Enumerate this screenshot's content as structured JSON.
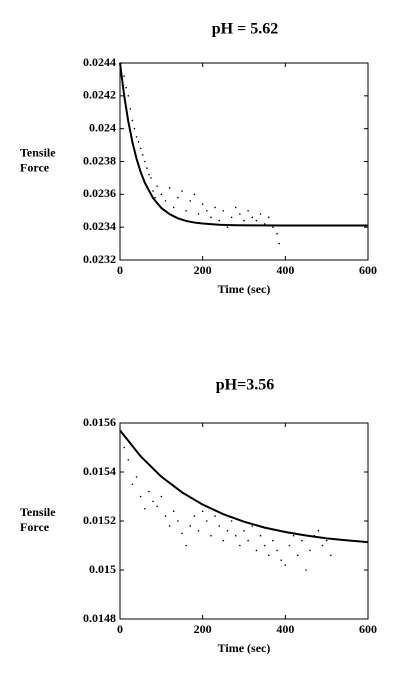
{
  "chart_data": [
    {
      "type": "scatter",
      "title": "pH = 5.62",
      "xlabel": "Time (sec)",
      "ylabel": [
        "Tensile",
        "Force"
      ],
      "xlim": [
        0,
        600
      ],
      "xticks": [
        0,
        200,
        400,
        600
      ],
      "ylim": [
        0.0232,
        0.0244
      ],
      "yticks": [
        0.0232,
        0.0234,
        0.0236,
        0.0238,
        0.024,
        0.0242,
        0.0244
      ],
      "series": [
        {
          "type": "scatter",
          "color": "#000000",
          "x": [
            5,
            10,
            15,
            20,
            25,
            30,
            35,
            40,
            45,
            50,
            55,
            60,
            65,
            70,
            75,
            80,
            85,
            90,
            100,
            110,
            120,
            130,
            140,
            150,
            160,
            170,
            180,
            190,
            200,
            210,
            220,
            230,
            240,
            250,
            260,
            270,
            280,
            290,
            300,
            310,
            320,
            330,
            340,
            350,
            360,
            370,
            380,
            385
          ],
          "values": [
            0.0244,
            0.02432,
            0.02425,
            0.0242,
            0.02412,
            0.02405,
            0.024,
            0.02395,
            0.02392,
            0.02388,
            0.02384,
            0.0238,
            0.02376,
            0.02372,
            0.0237,
            0.02362,
            0.02358,
            0.02365,
            0.0236,
            0.02356,
            0.02364,
            0.02352,
            0.02358,
            0.02362,
            0.0235,
            0.02356,
            0.0236,
            0.02348,
            0.02354,
            0.0235,
            0.02346,
            0.02352,
            0.02344,
            0.0235,
            0.0234,
            0.02346,
            0.02352,
            0.02348,
            0.02344,
            0.0235,
            0.02346,
            0.02344,
            0.02348,
            0.02342,
            0.02346,
            0.0234,
            0.02336,
            0.0233
          ]
        },
        {
          "type": "line",
          "color": "#000000",
          "x": [
            0,
            10,
            20,
            30,
            40,
            50,
            60,
            80,
            100,
            120,
            140,
            160,
            180,
            200,
            240,
            280,
            320,
            400,
            500,
            600
          ],
          "values": [
            0.0244,
            0.024203,
            0.024045,
            0.023918,
            0.023817,
            0.023736,
            0.023671,
            0.023577,
            0.023517,
            0.023479,
            0.023454,
            0.023438,
            0.023428,
            0.023422,
            0.023415,
            0.023412,
            0.023411,
            0.02341,
            0.02341,
            0.02341
          ]
        }
      ]
    },
    {
      "type": "scatter",
      "title": "pH=3.56",
      "xlabel": "Time (sec)",
      "ylabel": [
        "Tensile",
        "Force"
      ],
      "xlim": [
        0,
        600
      ],
      "xticks": [
        0,
        200,
        400,
        600
      ],
      "ylim": [
        0.0148,
        0.0156
      ],
      "yticks": [
        0.0148,
        0.015,
        0.0152,
        0.0154,
        0.0156
      ],
      "series": [
        {
          "type": "scatter",
          "color": "#000000",
          "x": [
            10,
            20,
            30,
            40,
            50,
            60,
            70,
            80,
            90,
            100,
            110,
            120,
            130,
            140,
            150,
            160,
            170,
            180,
            190,
            200,
            210,
            220,
            230,
            240,
            250,
            260,
            270,
            280,
            290,
            300,
            310,
            320,
            330,
            340,
            350,
            360,
            370,
            380,
            390,
            400,
            410,
            420,
            430,
            440,
            450,
            460,
            470,
            480,
            490,
            500,
            510
          ],
          "values": [
            0.0155,
            0.01545,
            0.01535,
            0.01538,
            0.0153,
            0.01525,
            0.01532,
            0.01528,
            0.01526,
            0.0153,
            0.01522,
            0.01518,
            0.01524,
            0.0152,
            0.01515,
            0.0151,
            0.01518,
            0.01522,
            0.01516,
            0.01524,
            0.0152,
            0.01514,
            0.01522,
            0.01518,
            0.01512,
            0.01516,
            0.0152,
            0.01514,
            0.0151,
            0.01516,
            0.01512,
            0.01518,
            0.01508,
            0.01514,
            0.0151,
            0.01506,
            0.01512,
            0.01508,
            0.01504,
            0.01502,
            0.0151,
            0.01514,
            0.01506,
            0.01512,
            0.015,
            0.01508,
            0.01514,
            0.01516,
            0.0151,
            0.01512,
            0.01506
          ]
        },
        {
          "type": "line",
          "color": "#000000",
          "x": [
            0,
            50,
            100,
            150,
            200,
            250,
            300,
            350,
            400,
            450,
            500,
            550,
            600
          ],
          "values": [
            0.01557,
            0.015464,
            0.015381,
            0.015317,
            0.015267,
            0.015228,
            0.015197,
            0.015173,
            0.015155,
            0.015141,
            0.015129,
            0.015121,
            0.015114
          ]
        }
      ]
    }
  ]
}
